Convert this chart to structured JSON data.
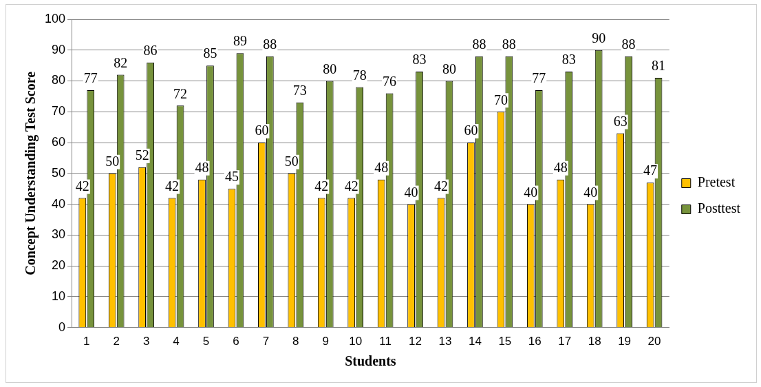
{
  "chart_data": {
    "type": "bar",
    "xlabel": "Students",
    "ylabel": "Concept Understanding Test Score",
    "categories": [
      "1",
      "2",
      "3",
      "4",
      "5",
      "6",
      "7",
      "8",
      "9",
      "10",
      "11",
      "12",
      "13",
      "14",
      "15",
      "16",
      "17",
      "18",
      "19",
      "20"
    ],
    "series": [
      {
        "name": "Pretest",
        "color": "#ffc000",
        "values": [
          42,
          50,
          52,
          42,
          48,
          45,
          60,
          50,
          42,
          42,
          48,
          40,
          42,
          60,
          70,
          40,
          48,
          40,
          63,
          47
        ]
      },
      {
        "name": "Posttest",
        "color": "#77933c",
        "values": [
          77,
          82,
          86,
          72,
          85,
          89,
          88,
          73,
          80,
          78,
          76,
          83,
          80,
          88,
          88,
          77,
          83,
          90,
          88,
          81
        ]
      }
    ],
    "ylim": [
      0,
      100
    ],
    "yticks": [
      0,
      10,
      20,
      30,
      40,
      50,
      60,
      70,
      80,
      90,
      100
    ],
    "grid": "y",
    "legend": "right",
    "data_labels": true
  }
}
